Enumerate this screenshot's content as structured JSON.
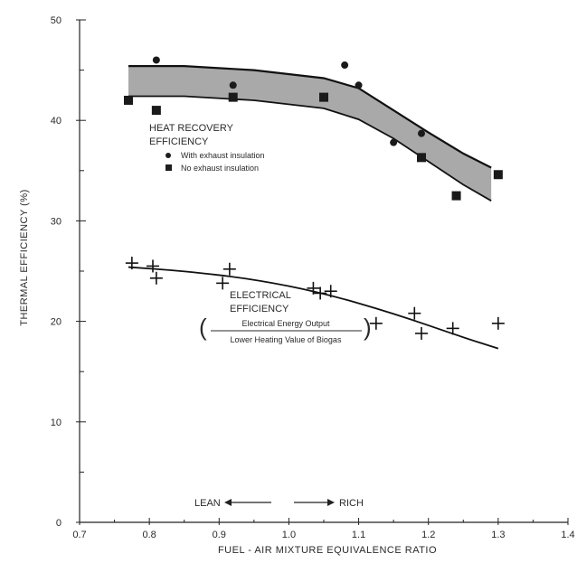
{
  "chart_data": {
    "type": "scatter",
    "xlabel": "FUEL - AIR MIXTURE EQUIVALENCE RATIO",
    "ylabel": "THERMAL EFFICIENCY (%)",
    "xlim": [
      0.7,
      1.4
    ],
    "ylim": [
      0,
      50
    ],
    "x_ticks": [
      "0.7",
      "0.8",
      "0.9",
      "1.0",
      "1.1",
      "1.2",
      "1.3",
      "1.4"
    ],
    "y_ticks": [
      "0",
      "10",
      "20",
      "30",
      "40",
      "50"
    ],
    "grid": false,
    "annotations": {
      "heat_recovery_line1": "HEAT RECOVERY",
      "heat_recovery_line2": "EFFICIENCY",
      "legend_circle": "With exhaust insulation",
      "legend_square": "No exhaust insulation",
      "electrical_line1": "ELECTRICAL",
      "electrical_line2": "EFFICIENCY",
      "fraction_numerator": "Electrical Energy Output",
      "fraction_denominator": "Lower Heating Value of Biogas",
      "lean": "LEAN",
      "rich": "RICH"
    },
    "heat_band": {
      "x": [
        0.77,
        0.85,
        0.95,
        1.05,
        1.1,
        1.15,
        1.2,
        1.25,
        1.29
      ],
      "upper": [
        45.4,
        45.4,
        45.0,
        44.2,
        43.2,
        41.0,
        38.8,
        36.7,
        35.3
      ],
      "lower": [
        42.4,
        42.4,
        42.0,
        41.2,
        40.1,
        38.2,
        35.9,
        33.6,
        32.0
      ]
    },
    "series": [
      {
        "name": "With exhaust insulation",
        "marker": "circle",
        "x": [
          0.81,
          0.92,
          1.08,
          1.1,
          1.15,
          1.19
        ],
        "y": [
          46.0,
          43.5,
          45.5,
          43.5,
          37.8,
          38.7
        ]
      },
      {
        "name": "No exhaust insulation",
        "marker": "square",
        "x": [
          0.77,
          0.81,
          0.92,
          1.05,
          1.19,
          1.24,
          1.3
        ],
        "y": [
          42.0,
          41.0,
          42.3,
          42.3,
          36.3,
          32.5,
          34.6
        ]
      },
      {
        "name": "",
        "marker": "plus",
        "x": [
          0.775,
          0.805,
          0.81,
          0.905,
          0.915,
          1.035,
          1.045,
          1.06,
          1.125,
          1.18,
          1.19,
          1.235,
          1.3
        ],
        "y": [
          25.8,
          25.5,
          24.3,
          23.8,
          25.2,
          23.3,
          22.8,
          23.0,
          19.8,
          20.8,
          18.8,
          19.3,
          19.8
        ]
      }
    ],
    "electrical_curve": {
      "x": [
        0.77,
        0.85,
        0.95,
        1.05,
        1.15,
        1.25,
        1.3
      ],
      "y": [
        25.4,
        25.0,
        24.2,
        22.8,
        20.8,
        18.4,
        17.3
      ]
    }
  }
}
